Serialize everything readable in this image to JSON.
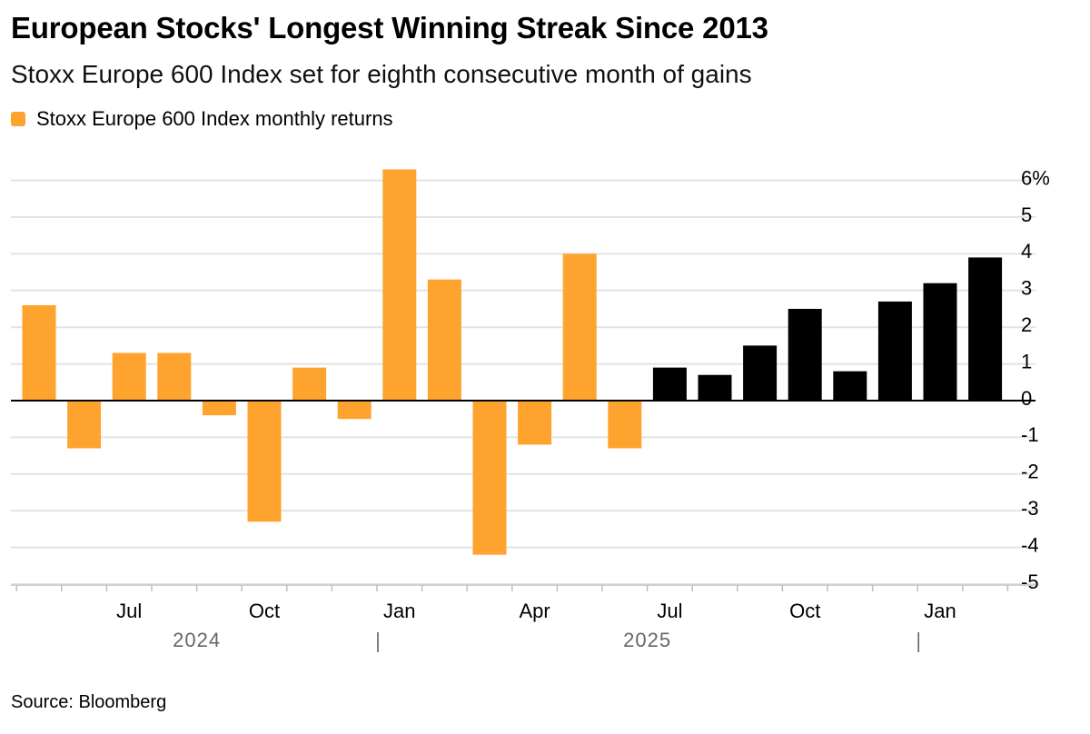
{
  "header": {
    "title": "European Stocks' Longest Winning Streak Since 2013",
    "subtitle": "Stoxx Europe 600 Index set for eighth consecutive month of gains"
  },
  "legend": {
    "label": "Stoxx Europe 600 Index monthly returns",
    "swatch_color": "#FFA32F"
  },
  "footer": {
    "source": "Source: Bloomberg"
  },
  "colors": {
    "orange": "#FFA32F",
    "black": "#000000",
    "grid": "#e3e3e3",
    "axis": "#000000",
    "tick_text": "#000000",
    "year_text": "#666666"
  },
  "chart_data": {
    "type": "bar",
    "title": "European Stocks' Longest Winning Streak Since 2013",
    "subtitle": "Stoxx Europe 600 Index set for eighth consecutive month of gains",
    "ylabel": "",
    "xlabel": "",
    "y_axis_position": "right",
    "ylim": [
      -5.2,
      6
    ],
    "yticks": [
      6,
      5,
      4,
      3,
      2,
      1,
      0,
      -1,
      -2,
      -3,
      -4,
      -5
    ],
    "ytick_labels": [
      "6%",
      "5",
      "4",
      "3",
      "2",
      "1",
      "0",
      "-1",
      "-2",
      "-3",
      "-4",
      "-5"
    ],
    "grid": true,
    "categories": [
      "2024-05",
      "2024-06",
      "2024-07",
      "2024-08",
      "2024-09",
      "2024-10",
      "2024-11",
      "2024-12",
      "2025-01",
      "2025-02",
      "2025-03",
      "2025-04",
      "2025-05",
      "2025-06",
      "2025-07",
      "2025-08",
      "2025-09",
      "2025-10",
      "2025-11",
      "2025-12",
      "2026-01",
      "2026-02"
    ],
    "values": [
      2.6,
      -1.3,
      1.3,
      1.3,
      -0.4,
      -3.3,
      0.9,
      -0.5,
      6.3,
      3.3,
      -4.2,
      -1.2,
      4.0,
      -1.3,
      0.9,
      0.7,
      1.5,
      2.5,
      0.8,
      2.7,
      3.2,
      3.9
    ],
    "colors": [
      "orange",
      "orange",
      "orange",
      "orange",
      "orange",
      "orange",
      "orange",
      "orange",
      "orange",
      "orange",
      "orange",
      "orange",
      "orange",
      "orange",
      "black",
      "black",
      "black",
      "black",
      "black",
      "black",
      "black",
      "black"
    ],
    "series": [
      {
        "name": "Stoxx Europe 600 Index monthly returns",
        "values_ref": "values"
      }
    ],
    "month_labels": [
      {
        "index": 2,
        "label": "Jul"
      },
      {
        "index": 5,
        "label": "Oct"
      },
      {
        "index": 8,
        "label": "Jan"
      },
      {
        "index": 11,
        "label": "Apr"
      },
      {
        "index": 14,
        "label": "Jul"
      },
      {
        "index": 17,
        "label": "Oct"
      },
      {
        "index": 20,
        "label": "Jan"
      }
    ],
    "year_labels": [
      {
        "label": "2024",
        "from_index": 0,
        "to_index": 7
      },
      {
        "label": "2025",
        "from_index": 8,
        "to_index": 19
      }
    ],
    "year_separators": [
      7.5,
      19.5
    ],
    "legend": [
      "Stoxx Europe 600 Index monthly returns"
    ]
  }
}
